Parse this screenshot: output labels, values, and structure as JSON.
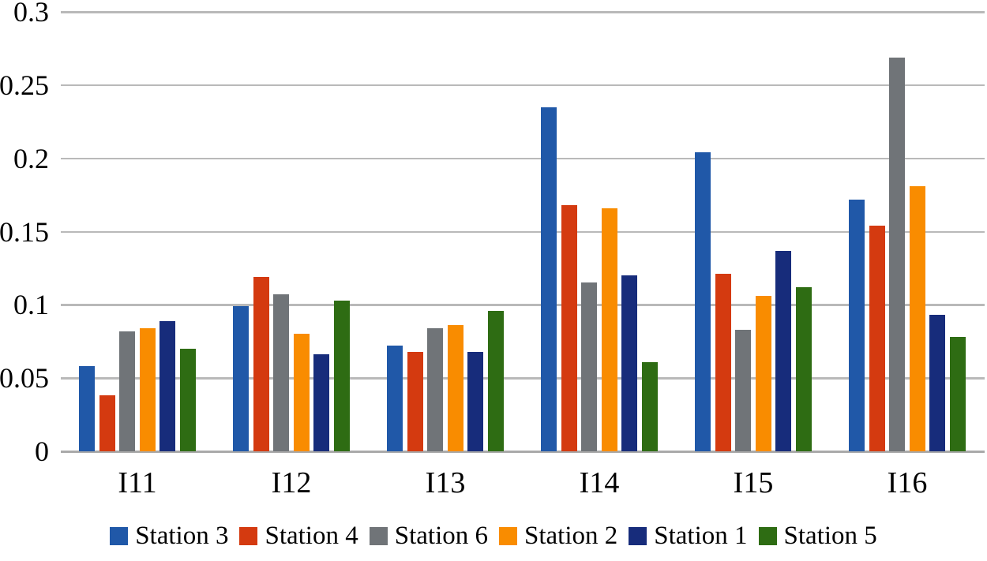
{
  "chart_data": {
    "type": "bar",
    "title": "",
    "xlabel": "",
    "ylabel": "",
    "categories": [
      "I11",
      "I12",
      "I13",
      "I14",
      "I15",
      "I16"
    ],
    "series": [
      {
        "name": "Station 3",
        "color": "#2058A8",
        "values": [
          0.058,
          0.099,
          0.072,
          0.235,
          0.204,
          0.172
        ]
      },
      {
        "name": "Station 4",
        "color": "#D43A10",
        "values": [
          0.038,
          0.119,
          0.068,
          0.168,
          0.121,
          0.154
        ]
      },
      {
        "name": "Station 6",
        "color": "#707478",
        "values": [
          0.082,
          0.107,
          0.084,
          0.115,
          0.083,
          0.269
        ]
      },
      {
        "name": "Station 2",
        "color": "#F98C00",
        "values": [
          0.084,
          0.08,
          0.086,
          0.166,
          0.106,
          0.181
        ]
      },
      {
        "name": "Station 1",
        "color": "#172C7B",
        "values": [
          0.089,
          0.066,
          0.068,
          0.12,
          0.137,
          0.093
        ]
      },
      {
        "name": "Station 5",
        "color": "#2E6C13",
        "values": [
          0.07,
          0.103,
          0.096,
          0.061,
          0.112,
          0.078
        ]
      }
    ],
    "yticks": [
      "0.3",
      "0.25",
      "0.2",
      "0.15",
      "0.1",
      "0.05",
      "0"
    ],
    "ylim": [
      0,
      0.3
    ],
    "grid": "horizontal",
    "legend_position": "bottom",
    "grid_color": "#B9B9B9",
    "axis_color": "#A9A9A9",
    "text_color": "#000000"
  }
}
